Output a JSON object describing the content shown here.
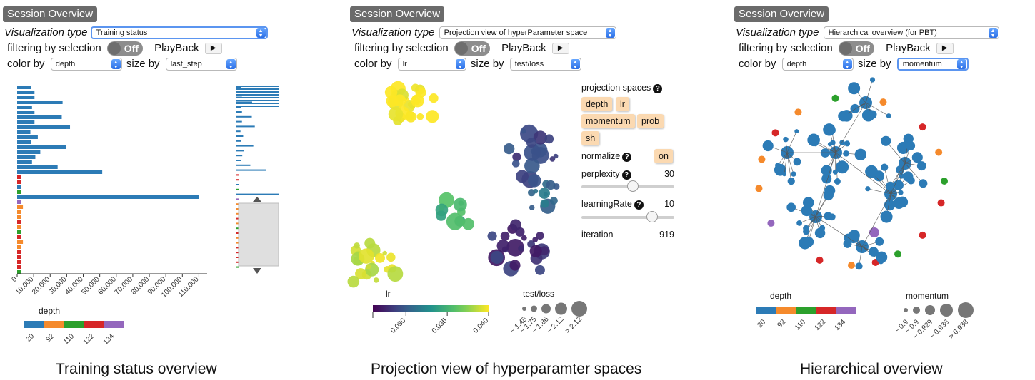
{
  "panels": {
    "training": {
      "session_title": "Session Overview",
      "vis_type_label": "Visualization type",
      "vis_type_value": "Training status",
      "filter_label": "filtering by selection",
      "toggle_text": "Off",
      "playback_label": "PlayBack",
      "color_by_label": "color by",
      "color_by_value": "depth",
      "size_by_label": "size by",
      "size_by_value": "last_step",
      "x_ticks": [
        "0",
        "10,000",
        "20,000",
        "30,000",
        "40,000",
        "50,000",
        "60,000",
        "70,000",
        "80,000",
        "90,000",
        "100,000",
        "110,000"
      ],
      "legend_title": "depth",
      "legend_labels": [
        "20",
        "92",
        "110",
        "122",
        "134"
      ],
      "caption": "Training status overview"
    },
    "projection": {
      "session_title": "Session Overview",
      "vis_type_label": "Visualization type",
      "vis_type_value": "Projection view of hyperParameter space",
      "filter_label": "filtering by selection",
      "toggle_text": "Off",
      "playback_label": "PlayBack",
      "color_by_label": "color by",
      "color_by_value": "lr",
      "size_by_label": "size by",
      "size_by_value": "test/loss",
      "projection_spaces_label": "projection spaces",
      "chips": [
        "depth",
        "lr",
        "momentum",
        "prob",
        "sh"
      ],
      "normalize_label": "normalize",
      "normalize_value": "on",
      "perplexity_label": "perplexity",
      "perplexity_value": "30",
      "perplexity_level": 0.55,
      "learning_rate_label": "learningRate",
      "learning_rate_value": "10",
      "learning_rate_level": 0.76,
      "iteration_label": "iteration",
      "iteration_value": "919",
      "color_legend_title": "lr",
      "color_ticks": [
        "0.030",
        "0.035",
        "0.040"
      ],
      "size_legend_title": "test/loss",
      "size_labels": [
        "~ 1.48",
        "~ 1.75",
        "~ 1.86",
        "~ 2.12",
        "> 2.12"
      ],
      "caption": "Projection view of hyperparamter spaces"
    },
    "hier": {
      "session_title": "Session Overview",
      "vis_type_label": "Visualization type",
      "vis_type_value": "Hierarchical overview (for PBT)",
      "filter_label": "filtering by selection",
      "toggle_text": "Off",
      "playback_label": "PlayBack",
      "color_by_label": "color by",
      "color_by_value": "depth",
      "size_by_label": "size by",
      "size_by_value": "momentum",
      "color_legend_title": "depth",
      "color_labels": [
        "20",
        "92",
        "110",
        "122",
        "134"
      ],
      "size_legend_title": "momentum",
      "size_labels": [
        "~ 0.9",
        "~ 0.9",
        "~ 0.929",
        "~ 0.938",
        "> 0.938"
      ],
      "caption": "Hierarchical overview"
    }
  },
  "icons": {
    "play": "play-icon",
    "dropdown": "dropdown-arrow-icon",
    "help": "question-icon"
  },
  "colors": {
    "blue": "#2c7bb6",
    "orange": "#f58a2c",
    "green": "#2ca02c",
    "red": "#d62728",
    "purple": "#9467bd",
    "toggle": "#8d8d8d",
    "chip": "#fbd9b1",
    "session_title_bg": "#6b6b6b"
  },
  "chart_data": [
    {
      "type": "bar",
      "orientation": "horizontal",
      "x_ticks": [
        "0",
        "10,000",
        "20,000",
        "30,000",
        "40,000",
        "50,000",
        "60,000",
        "70,000",
        "80,000",
        "90,000",
        "100,000",
        "110,000"
      ],
      "xlim": [
        0,
        115000
      ],
      "color_by": "depth",
      "values": [
        8500,
        10500,
        10500,
        27500,
        9000,
        10500,
        27000,
        10500,
        32000,
        8000,
        12500,
        8500,
        29500,
        14000,
        11000,
        9000,
        24500,
        51500,
        1500,
        1500,
        1500,
        1500,
        110000,
        1000,
        3500,
        1500,
        1500,
        1500,
        1500,
        1500,
        1500,
        3500,
        1500,
        1500,
        1500,
        1500,
        1500,
        1500
      ],
      "colors": [
        "blue",
        "blue",
        "blue",
        "blue",
        "blue",
        "blue",
        "blue",
        "blue",
        "blue",
        "blue",
        "blue",
        "blue",
        "blue",
        "blue",
        "blue",
        "blue",
        "blue",
        "blue",
        "red",
        "red",
        "blue",
        "green",
        "blue",
        "purple",
        "orange",
        "orange",
        "orange",
        "red",
        "orange",
        "green",
        "red",
        "orange",
        "orange",
        "red",
        "red",
        "red",
        "red",
        "green"
      ],
      "legend": {
        "title": "depth",
        "labels": [
          "20",
          "92",
          "110",
          "122",
          "134"
        ]
      }
    },
    {
      "type": "scatter",
      "title": "",
      "color_by": "lr",
      "size_by": "test/loss",
      "color_range": [
        0.026,
        0.04
      ],
      "color_ticks": [
        0.03,
        0.035,
        0.04
      ],
      "size_legend": [
        "~ 1.48",
        "~ 1.75",
        "~ 1.86",
        "~ 2.12",
        "> 2.12"
      ],
      "clusters": [
        {
          "lr": 0.04,
          "size": 1.8,
          "count": 28
        },
        {
          "lr": 0.031,
          "size": 2.0,
          "count": 12
        },
        {
          "lr": 0.029,
          "size": 2.2,
          "count": 18
        },
        {
          "lr": 0.028,
          "size": 2.3,
          "count": 22
        },
        {
          "lr": 0.035,
          "size": 2.1,
          "count": 10
        },
        {
          "lr": 0.039,
          "size": 1.9,
          "count": 22
        }
      ]
    },
    {
      "type": "network",
      "color_by": "depth",
      "size_by": "momentum",
      "legend_colors": [
        "20",
        "92",
        "110",
        "122",
        "134"
      ],
      "size_legend": [
        "~ 0.9",
        "~ 0.9",
        "~ 0.929",
        "~ 0.938",
        "> 0.938"
      ],
      "node_counts": {
        "20": 75,
        "92": 5,
        "110": 3,
        "122": 6,
        "134": 2
      }
    }
  ]
}
